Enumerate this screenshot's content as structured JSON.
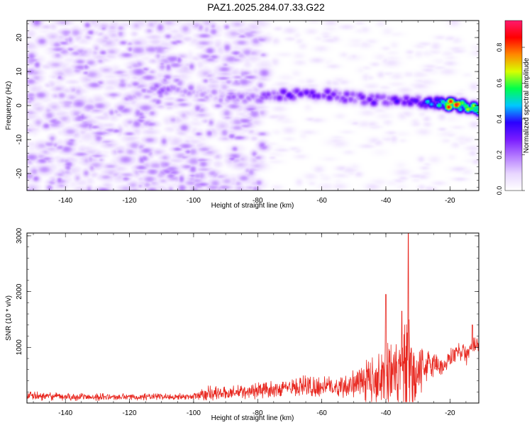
{
  "title": "PAZ1.2025.284.07.33.G22",
  "chart_data": [
    {
      "type": "heatmap",
      "title": "PAZ1.2025.284.07.33.G22",
      "xlabel": "Height of straight line (km)",
      "ylabel": "Frequency (Hz)",
      "xlim": [
        -152,
        -11
      ],
      "ylim": [
        -25,
        25
      ],
      "x_ticks": [
        -140,
        -120,
        -100,
        -80,
        -60,
        -40,
        -20
      ],
      "x_tick_labels": [
        "-140",
        "-120",
        "-100",
        "-80",
        "-60",
        "-40",
        "-20"
      ],
      "y_ticks": [
        -20,
        -10,
        0,
        10,
        20
      ],
      "y_tick_labels": [
        "-20",
        "-10",
        "0",
        "10",
        "20"
      ],
      "colorbar": {
        "label": "Normalized spectral amplitude",
        "range": [
          0,
          0.95
        ],
        "ticks": [
          0.0,
          0.2,
          0.4,
          0.6,
          0.8
        ],
        "tick_labels": [
          "0.0",
          "0.2",
          "0.4",
          "0.6",
          "0.8"
        ],
        "colormap": [
          "#ffffff",
          "#e8d6ff",
          "#b57cff",
          "#7a1cff",
          "#2b00ff",
          "#00c8ff",
          "#00ff4c",
          "#d8ff00",
          "#ff8800",
          "#ff0000",
          "#ff1a6e"
        ]
      },
      "ridge": {
        "description_points_x": [
          -113,
          -105,
          -100,
          -95,
          -90,
          -85,
          -80,
          -75,
          -70,
          -65,
          -60,
          -55,
          -50,
          -45,
          -40,
          -35,
          -30,
          -25,
          -20,
          -15,
          -11
        ],
        "frequency": [
          5,
          4.5,
          4,
          3.5,
          3,
          2.5,
          2.5,
          3,
          3.5,
          3.5,
          3.5,
          3,
          2.5,
          2,
          2,
          1.5,
          1.5,
          1,
          0.5,
          0,
          -1
        ],
        "amplitude": [
          0.2,
          0.2,
          0.15,
          0.15,
          0.18,
          0.2,
          0.2,
          0.3,
          0.3,
          0.3,
          0.3,
          0.25,
          0.25,
          0.3,
          0.3,
          0.35,
          0.4,
          0.5,
          0.8,
          0.9,
          0.7
        ]
      },
      "noise_region_x": [
        -152,
        -78
      ],
      "noise_level": 0.1
    },
    {
      "type": "line",
      "xlabel": "Height of straight line (km)",
      "ylabel": "SNR (10 * v/v)",
      "xlim": [
        -152,
        -11
      ],
      "ylim": [
        0,
        3050
      ],
      "x_ticks": [
        -140,
        -120,
        -100,
        -80,
        -60,
        -40,
        -20
      ],
      "x_tick_labels": [
        "-140",
        "-120",
        "-100",
        "-80",
        "-60",
        "-40",
        "-20"
      ],
      "y_ticks": [
        1000,
        2000,
        3000
      ],
      "y_tick_labels": [
        "1000",
        "2000",
        "3000"
      ],
      "color": "#e8271f",
      "envelope": {
        "x": [
          -152,
          -140,
          -120,
          -100,
          -96,
          -90,
          -80,
          -70,
          -65,
          -60,
          -55,
          -50,
          -45,
          -42,
          -40,
          -38,
          -35,
          -33,
          -30,
          -28,
          -25,
          -22,
          -20,
          -17,
          -15,
          -13,
          -11
        ],
        "baseline": [
          130,
          110,
          110,
          120,
          180,
          180,
          220,
          280,
          280,
          300,
          300,
          350,
          400,
          500,
          600,
          500,
          500,
          400,
          500,
          650,
          700,
          650,
          800,
          950,
          850,
          1000,
          1050
        ],
        "amplitude": [
          120,
          100,
          90,
          80,
          220,
          160,
          220,
          200,
          350,
          250,
          300,
          350,
          600,
          700,
          1100,
          800,
          1000,
          1850,
          700,
          450,
          350,
          250,
          300,
          250,
          300,
          250,
          200
        ]
      },
      "peaks": [
        {
          "x": -33,
          "y": 3050
        },
        {
          "x": -40,
          "y": 1950
        },
        {
          "x": -35,
          "y": 1650
        },
        {
          "x": -13,
          "y": 1400
        }
      ]
    }
  ]
}
